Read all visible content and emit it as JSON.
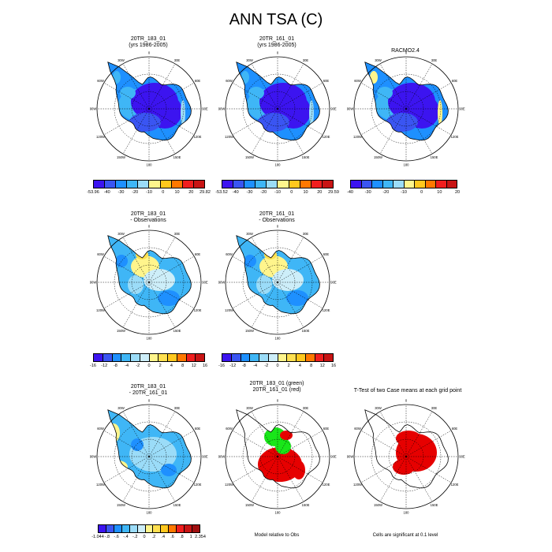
{
  "title": "ANN TSA (C)",
  "panels": {
    "p11": {
      "title1": "20TR_183_01",
      "title2": "(yrs 1986-2005)"
    },
    "p12": {
      "title1": "20TR_161_01",
      "title2": "(yrs 1986-2005)"
    },
    "p13": {
      "title1": "RACMO2.4",
      "title2": ""
    },
    "p21": {
      "title1": "20TR_183_01",
      "title2": "- Observations"
    },
    "p22": {
      "title1": "20TR_161_01",
      "title2": "- Observations"
    },
    "p31": {
      "title1": "20TR_183_01",
      "title2": "- 20TR_161_01"
    },
    "p32": {
      "title1": "20TR_183_01 (green)",
      "title2": "20TR_161_01 (red)"
    },
    "p33": {
      "title1": "T-Test of two Case means at each grid point",
      "title2": ""
    }
  },
  "notes": {
    "model_relative": "Model relative to Obs",
    "significance": "Cells are significant at 0.1 level"
  },
  "map_labels": {
    "lon": [
      "0",
      "30E",
      "60E",
      "90E",
      "120E",
      "150E",
      "180",
      "150W",
      "120W",
      "90W",
      "60W",
      "30W"
    ]
  },
  "colorbars": {
    "cb1": {
      "labels": [
        "-53.96",
        "-40",
        "-30",
        "-20",
        "-10",
        "0",
        "10",
        "20",
        "29.82"
      ]
    },
    "cb2": {
      "labels": [
        "-53.52",
        "-40",
        "-30",
        "-20",
        "-10",
        "0",
        "10",
        "20",
        "29.59"
      ]
    },
    "cb3": {
      "labels": [
        "-40",
        "-30",
        "-20",
        "-10",
        "0",
        "10",
        "20"
      ]
    },
    "cb4": {
      "labels": [
        "-16",
        "-12",
        "-8",
        "-4",
        "-2",
        "0",
        "2",
        "4",
        "8",
        "12",
        "16"
      ]
    },
    "cb5": {
      "labels": [
        "-16",
        "-12",
        "-8",
        "-4",
        "-2",
        "0",
        "2",
        "4",
        "8",
        "12",
        "16"
      ]
    },
    "cb6": {
      "labels": [
        "-1.044",
        "-.8",
        "-.6",
        "-.4",
        "-.2",
        "0",
        ".2",
        ".4",
        ".6",
        ".8",
        "1",
        "2.354"
      ]
    }
  },
  "colors": {
    "abs_scale": [
      "#3c14f0",
      "#3a55f2",
      "#1e90ff",
      "#3fb6f6",
      "#9bdcf8",
      "#fff58c",
      "#ffc81e",
      "#ff7800",
      "#f01e1e",
      "#c81414"
    ],
    "diff_scale": [
      "#3c14f0",
      "#3a55f2",
      "#1e90ff",
      "#3fb6f6",
      "#9bdcf8",
      "#cdeef9",
      "#fff58c",
      "#ffe050",
      "#ffc81e",
      "#ff7800",
      "#f01e1e",
      "#c81414"
    ],
    "green": "#19e619",
    "red": "#e60000"
  }
}
